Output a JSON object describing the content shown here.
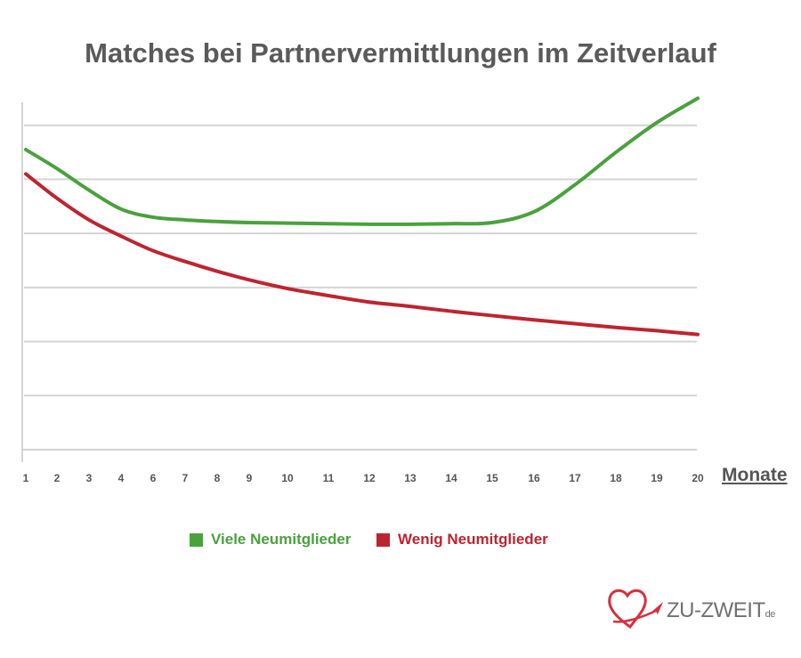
{
  "title": "Matches bei Partnervermittlungen im Zeitverlauf",
  "chart_data": {
    "type": "line",
    "title": "Matches bei Partnervermittlungen im Zeitverlauf",
    "xlabel": "Monate",
    "ylabel": "",
    "x_ticks": [
      "1",
      "2",
      "3",
      "4",
      "6",
      "7",
      "8",
      "9",
      "10",
      "11",
      "12",
      "13",
      "14",
      "15",
      "16",
      "17",
      "18",
      "19",
      "20"
    ],
    "ylim": [
      0,
      7
    ],
    "y_gridlines": [
      1,
      2,
      3,
      4,
      5,
      6
    ],
    "grid": true,
    "legend_position": "bottom",
    "series": [
      {
        "name": "Viele Neumitglieder",
        "color": "#4aa13d",
        "values": [
          5.55,
          5.2,
          4.8,
          4.45,
          4.3,
          4.25,
          4.22,
          4.2,
          4.19,
          4.18,
          4.17,
          4.17,
          4.18,
          4.2,
          4.4,
          4.9,
          5.5,
          6.05,
          6.5
        ]
      },
      {
        "name": "Wenig Neumitglieder",
        "color": "#be2430",
        "values": [
          5.1,
          4.65,
          4.25,
          3.95,
          3.68,
          3.48,
          3.3,
          3.14,
          2.98,
          2.85,
          2.73,
          2.65,
          2.56,
          2.48,
          2.4,
          2.33,
          2.26,
          2.2,
          2.13
        ]
      }
    ]
  },
  "legend": {
    "items": [
      {
        "label": "Viele Neumitglieder",
        "color": "#4aa13d"
      },
      {
        "label": "Wenig Neumitglieder",
        "color": "#be2430"
      }
    ]
  },
  "logo": {
    "text": "ZU-ZWEIT",
    "suffix": "de"
  }
}
